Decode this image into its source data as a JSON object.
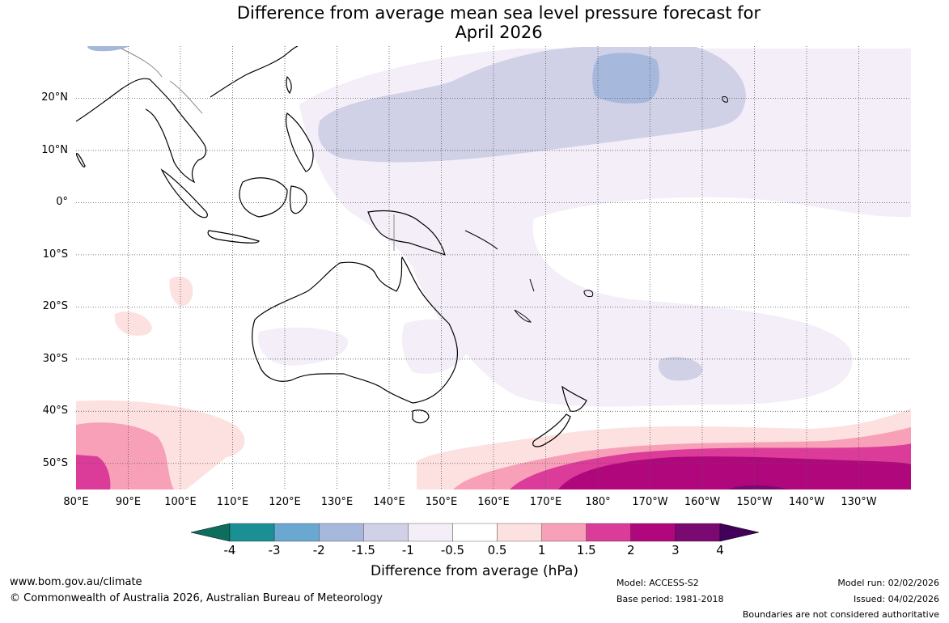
{
  "title": {
    "line1": "Difference from average mean sea level pressure forecast for",
    "line2": "April 2026"
  },
  "map": {
    "lat_labels": [
      "20°N",
      "10°N",
      "0°",
      "10°S",
      "20°S",
      "30°S",
      "40°S",
      "50°S"
    ],
    "lon_labels": [
      "80°E",
      "90°E",
      "100°E",
      "110°E",
      "120°E",
      "130°E",
      "140°E",
      "150°E",
      "160°E",
      "170°E",
      "180°",
      "170°W",
      "160°W",
      "150°W",
      "140°W",
      "130°W"
    ],
    "extent": {
      "lon_min": 80,
      "lon_max": 240,
      "lat_min": -55,
      "lat_max": 30
    }
  },
  "colorbar": {
    "tick_labels": [
      "-4",
      "-3",
      "-2",
      "-1.5",
      "-1",
      "-0.5",
      "0.5",
      "1",
      "1.5",
      "2",
      "3",
      "4"
    ],
    "colors": [
      "#0d6e5e",
      "#1a8f94",
      "#6aa8d2",
      "#a6b8dc",
      "#d0d0e6",
      "#f3eef7",
      "#ffffff",
      "#fde0e0",
      "#f7a0b8",
      "#dc3c99",
      "#b0087c",
      "#7a0a72",
      "#43005a"
    ],
    "title": "Difference from average (hPa)"
  },
  "footer": {
    "url": "www.bom.gov.au/climate",
    "copyright": "© Commonwealth of Australia 2026, Australian Bureau of Meteorology",
    "model": "Model: ACCESS-S2",
    "base_period": "Base period: 1981-2018",
    "model_run": "Model run: 02/02/2026",
    "issued": "Issued: 04/02/2026",
    "boundaries": "Boundaries are not considered authoritative"
  }
}
